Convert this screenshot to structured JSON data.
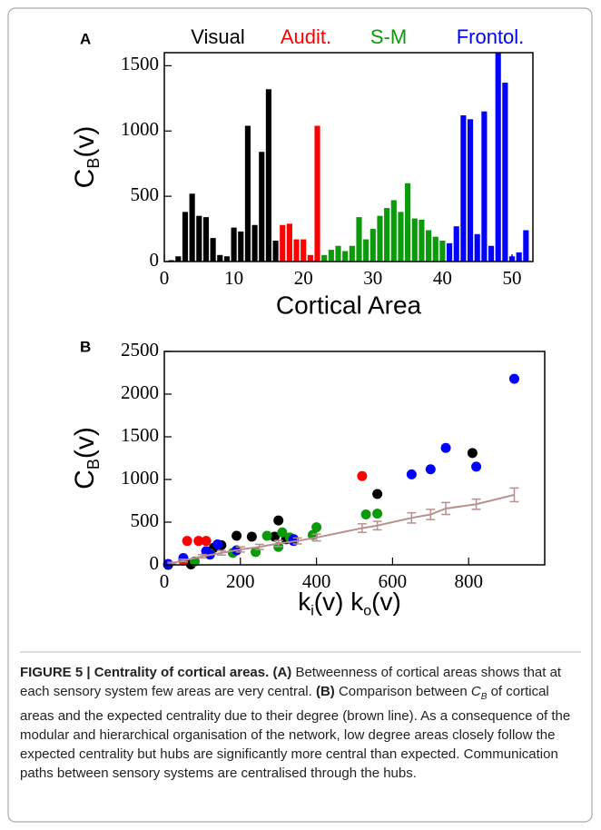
{
  "chart_data": [
    {
      "type": "bar",
      "panel": "A",
      "xlabel": "Cortical Area",
      "ylabel": [
        "C",
        "B",
        "(v)"
      ],
      "xlim": [
        0,
        53
      ],
      "ylim": [
        0,
        1600
      ],
      "xticks": [
        0,
        10,
        20,
        30,
        40,
        50
      ],
      "yticks": [
        0,
        500,
        1000,
        1500
      ],
      "series": [
        {
          "name": "Visual",
          "color": "#000000",
          "x": [
            1,
            2,
            3,
            4,
            5,
            6,
            7,
            8,
            9,
            10,
            11,
            12,
            13,
            14,
            15,
            16
          ],
          "values": [
            10,
            40,
            380,
            520,
            350,
            340,
            180,
            50,
            40,
            260,
            230,
            1040,
            280,
            840,
            1320,
            160
          ]
        },
        {
          "name": "Audit.",
          "color": "#ff0000",
          "x": [
            17,
            18,
            19,
            20,
            21,
            22
          ],
          "values": [
            280,
            290,
            170,
            170,
            50,
            1040
          ]
        },
        {
          "name": "S-M",
          "color": "#0a9a0a",
          "x": [
            23,
            24,
            25,
            26,
            27,
            28,
            29,
            30,
            31,
            32,
            33,
            34,
            35,
            36,
            37,
            38,
            39,
            40
          ],
          "values": [
            50,
            90,
            120,
            80,
            120,
            340,
            170,
            250,
            350,
            410,
            470,
            380,
            600,
            330,
            320,
            240,
            190,
            160
          ]
        },
        {
          "name": "Frontol.",
          "color": "#0000ff",
          "x": [
            41,
            42,
            43,
            44,
            45,
            46,
            47,
            48,
            49,
            50,
            51,
            52
          ],
          "values": [
            140,
            270,
            1120,
            1090,
            210,
            1150,
            120,
            1600,
            1370,
            40,
            70,
            240
          ]
        }
      ]
    },
    {
      "type": "scatter",
      "panel": "B",
      "xlabel": [
        "k",
        "i",
        "(v)  k",
        "o",
        "(v)"
      ],
      "ylabel": [
        "C",
        "B",
        "(v)"
      ],
      "xlim": [
        0,
        1000
      ],
      "ylim": [
        0,
        2500
      ],
      "xticks": [
        0,
        200,
        400,
        600,
        800
      ],
      "yticks": [
        0,
        500,
        1000,
        1500,
        2000,
        2500
      ],
      "series": [
        {
          "color": "#000000",
          "x": [
            10,
            70,
            120,
            130,
            150,
            190,
            230,
            290,
            300,
            320,
            560,
            810
          ],
          "values": [
            0,
            5,
            150,
            200,
            230,
            340,
            330,
            330,
            520,
            300,
            830,
            1310
          ]
        },
        {
          "color": "#ff0000",
          "x": [
            50,
            60,
            90,
            110,
            520
          ],
          "values": [
            50,
            280,
            280,
            280,
            1040
          ]
        },
        {
          "color": "#0a9a0a",
          "x": [
            80,
            120,
            180,
            240,
            270,
            300,
            310,
            330,
            390,
            400,
            530,
            560
          ],
          "values": [
            40,
            130,
            140,
            150,
            340,
            210,
            380,
            320,
            350,
            440,
            590,
            600
          ]
        },
        {
          "color": "#0000ff",
          "x": [
            10,
            50,
            110,
            120,
            140,
            190,
            340,
            340,
            650,
            700,
            740,
            820,
            920
          ],
          "values": [
            10,
            80,
            160,
            120,
            240,
            170,
            280,
            300,
            1060,
            1120,
            1370,
            1150,
            2180
          ]
        },
        {
          "type": "line",
          "color": "#b89090",
          "x": [
            20,
            50,
            100,
            150,
            200,
            250,
            300,
            350,
            400,
            520,
            560,
            650,
            700,
            740,
            820,
            920
          ],
          "values": [
            20,
            50,
            100,
            140,
            180,
            210,
            250,
            280,
            320,
            430,
            460,
            550,
            590,
            660,
            710,
            820
          ],
          "errors": [
            10,
            15,
            20,
            25,
            30,
            30,
            35,
            35,
            40,
            50,
            50,
            60,
            60,
            70,
            60,
            80
          ]
        }
      ]
    }
  ],
  "caption": [
    {
      "text": "FIGURE 5 | Centrality of cortical areas. ",
      "style": "bold"
    },
    {
      "text": "(A)",
      "style": "bold"
    },
    {
      "text": " Betweenness of cortical areas shows that at each sensory system few areas are very central. ",
      "style": "normal"
    },
    {
      "text": "(B)",
      "style": "bold"
    },
    {
      "text": " Comparison between ",
      "style": "normal"
    },
    {
      "text": "C",
      "style": "italic"
    },
    {
      "text": "B",
      "style": "sub"
    },
    {
      "text": " of cortical areas and the expected centrality due to their degree (brown line). As a consequence of the modular and hierarchical organisation of the network, low degree areas closely follow the expected centrality but hubs are significantly more central than expected. Communication paths between sensory systems are centralised through the hubs.",
      "style": "normal"
    }
  ]
}
